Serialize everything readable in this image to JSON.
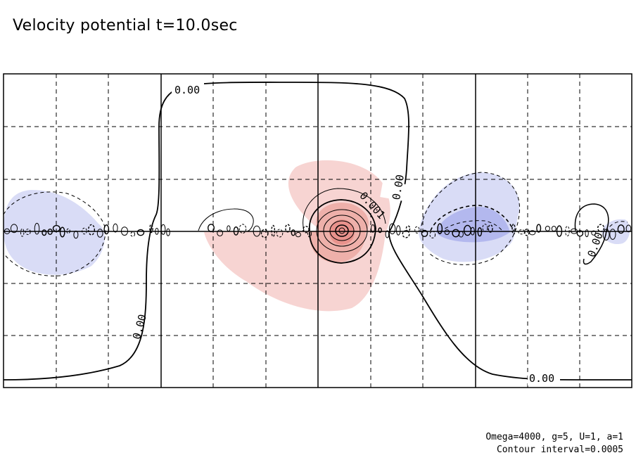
{
  "title": "Velocity potential t=10.0sec",
  "annotation": {
    "line1": "Omega=4000, g=5, U=1, a=1",
    "line2": "Contour interval=0.0005"
  },
  "colors": {
    "positive_fill": "#f7d4d2",
    "positive_fill_strong": "#e8928c",
    "negative_fill": "#d9dcf6",
    "negative_fill_strong": "#b3b8ee",
    "contour": "#000000",
    "grid": "#000000"
  },
  "chart_data": {
    "type": "contour",
    "title": "Velocity potential t=10.0sec",
    "contour_interval": 0.0005,
    "grid": "dashed",
    "contour_labels": [
      "0.00",
      "0.00",
      "0.00",
      "0.00",
      "0.001",
      "0.00"
    ],
    "parameters": {
      "Omega": 4000,
      "g": 5,
      "U": 1,
      "a": 1
    }
  }
}
